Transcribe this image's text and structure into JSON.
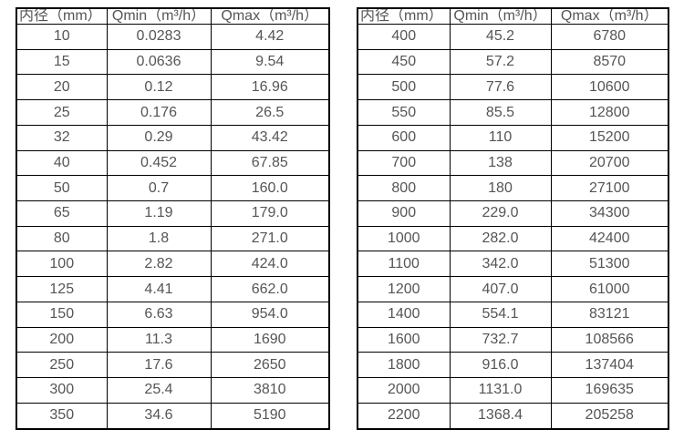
{
  "page": {
    "background_color": "#ffffff",
    "border_color": "#000000",
    "text_color": "#555555"
  },
  "tables": [
    {
      "name": "small-diameter-flow-table",
      "headers": [
        "内径（mm）",
        "Qmin（m³/h）",
        "Qmax（m³/h）"
      ],
      "rows": [
        [
          "10",
          "0.0283",
          "4.42"
        ],
        [
          "15",
          "0.0636",
          "9.54"
        ],
        [
          "20",
          "0.12",
          "16.96"
        ],
        [
          "25",
          "0.176",
          "26.5"
        ],
        [
          "32",
          "0.29",
          "43.42"
        ],
        [
          "40",
          "0.452",
          "67.85"
        ],
        [
          "50",
          "0.7",
          "160.0"
        ],
        [
          "65",
          "1.19",
          "179.0"
        ],
        [
          "80",
          "1.8",
          "271.0"
        ],
        [
          "100",
          "2.82",
          "424.0"
        ],
        [
          "125",
          "4.41",
          "662.0"
        ],
        [
          "150",
          "6.63",
          "954.0"
        ],
        [
          "200",
          "11.3",
          "1690"
        ],
        [
          "250",
          "17.6",
          "2650"
        ],
        [
          "300",
          "25.4",
          "3810"
        ],
        [
          "350",
          "34.6",
          "5190"
        ]
      ]
    },
    {
      "name": "large-diameter-flow-table",
      "headers": [
        "内径（mm）",
        "Qmin（m³/h）",
        "Qmax（m³/h）"
      ],
      "rows": [
        [
          "400",
          "45.2",
          "6780"
        ],
        [
          "450",
          "57.2",
          "8570"
        ],
        [
          "500",
          "77.6",
          "10600"
        ],
        [
          "550",
          "85.5",
          "12800"
        ],
        [
          "600",
          "110",
          "15200"
        ],
        [
          "700",
          "138",
          "20700"
        ],
        [
          "800",
          "180",
          "27100"
        ],
        [
          "900",
          "229.0",
          "34300"
        ],
        [
          "1000",
          "282.0",
          "42400"
        ],
        [
          "1100",
          "342.0",
          "51300"
        ],
        [
          "1200",
          "407.0",
          "61000"
        ],
        [
          "1400",
          "554.1",
          "83121"
        ],
        [
          "1600",
          "732.7",
          "108566"
        ],
        [
          "1800",
          "916.0",
          "137404"
        ],
        [
          "2000",
          "1131.0",
          "169635"
        ],
        [
          "2200",
          "1368.4",
          "205258"
        ]
      ]
    }
  ]
}
